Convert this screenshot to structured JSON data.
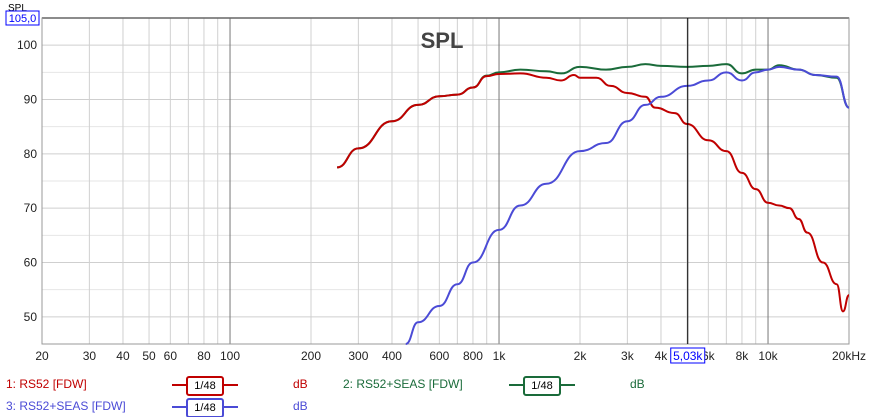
{
  "chart_data": {
    "type": "line",
    "title": "SPL",
    "ylabel": "SPL",
    "xlabel": "",
    "xscale": "log",
    "xlim": [
      20,
      20000
    ],
    "ylim": [
      45,
      105
    ],
    "yticks": [
      50,
      60,
      70,
      80,
      90,
      100
    ],
    "ytop_label": "105,0",
    "xticks": [
      20,
      30,
      40,
      50,
      60,
      80,
      100,
      200,
      300,
      400,
      600,
      800,
      1000,
      2000,
      3000,
      4000,
      6000,
      8000,
      10000,
      20000
    ],
    "xtick_labels": [
      "20",
      "30",
      "40",
      "50",
      "60",
      "80",
      "100",
      "200",
      "300",
      "400",
      "600",
      "800",
      "1k",
      "2k",
      "3k",
      "4k",
      "6k",
      "8k",
      "10k",
      "20kHz"
    ],
    "cursor": {
      "freq": 5030,
      "label": "5,03k"
    },
    "series": [
      {
        "name": "2: RS52+SEAS [FDW]",
        "color": "#1a6b3a",
        "unit": "dB",
        "smoothing": "1/48",
        "x": [
          250,
          300,
          400,
          500,
          600,
          700,
          800,
          900,
          1000,
          1200,
          1500,
          1700,
          2000,
          2500,
          3000,
          3500,
          4000,
          5000,
          6000,
          7000,
          8000,
          9000,
          10000,
          11000,
          13000,
          15000,
          18000,
          20000
        ],
        "y": [
          77.5,
          81,
          86,
          89,
          90.6,
          90.9,
          92.2,
          94.4,
          95,
          95.5,
          95.2,
          94.8,
          96,
          95.5,
          96,
          96.5,
          96.2,
          96,
          96.2,
          96.5,
          94.8,
          95.5,
          95.5,
          96.3,
          95.5,
          94.5,
          94,
          88.5
        ]
      },
      {
        "name": "1: RS52 [FDW]",
        "color": "#c00000",
        "unit": "dB",
        "smoothing": "1/48",
        "x": [
          250,
          300,
          400,
          500,
          600,
          700,
          800,
          900,
          1000,
          1200,
          1500,
          1700,
          1900,
          2000,
          2300,
          2600,
          3000,
          3500,
          3800,
          4500,
          5000,
          6000,
          7000,
          8000,
          9000,
          10000,
          11000,
          12000,
          13000,
          14000,
          16000,
          18000,
          19000,
          20000
        ],
        "y": [
          77.5,
          81,
          86,
          89,
          90.6,
          90.9,
          92.2,
          94.3,
          94.7,
          94.8,
          94,
          93.5,
          94.5,
          94,
          94,
          92.5,
          91.2,
          90.5,
          88.5,
          87.5,
          85.5,
          82.5,
          80.5,
          76.5,
          73.5,
          71,
          70.5,
          70,
          68,
          65.5,
          60,
          56,
          51,
          54
        ]
      },
      {
        "name": "3: RS52+SEAS [FDW]",
        "color": "#4b4bd6",
        "unit": "dB",
        "smoothing": "1/48",
        "x": [
          450,
          500,
          600,
          700,
          800,
          1000,
          1200,
          1500,
          2000,
          2500,
          3000,
          3500,
          4000,
          5000,
          6000,
          7000,
          8000,
          9000,
          10000,
          11000,
          13000,
          15000,
          18000,
          20000
        ],
        "y": [
          45,
          49,
          52,
          56,
          60,
          66,
          70.5,
          74.5,
          80.5,
          82,
          86,
          89,
          90.5,
          92.5,
          93.5,
          95,
          93.5,
          95,
          95.5,
          96,
          95.5,
          94.5,
          94.2,
          88.5
        ]
      }
    ]
  }
}
